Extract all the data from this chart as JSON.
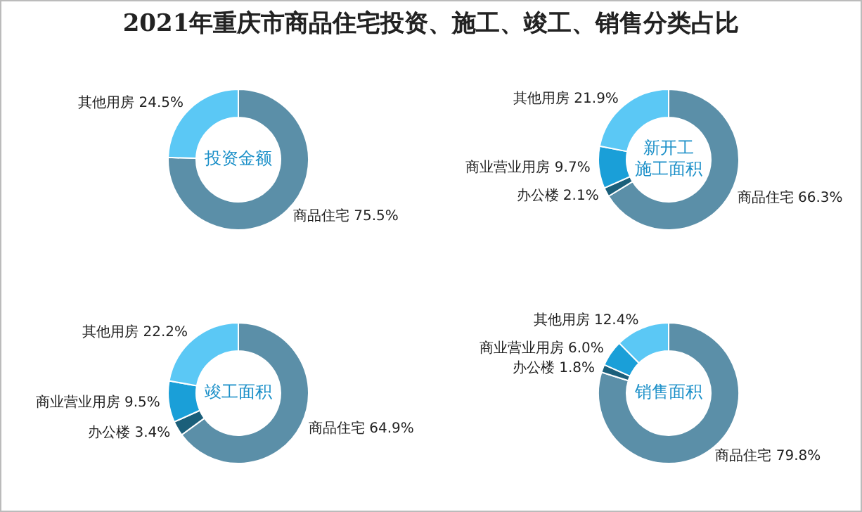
{
  "chart_data": [
    {
      "type": "donut",
      "title": "2021年重庆市商品住宅投资、施工、竣工、销售分类占比",
      "subtitle": "投资金额",
      "categories": [
        "商品住宅",
        "其他用房"
      ],
      "values": [
        75.5,
        24.5
      ],
      "value_labels": [
        "75.5%",
        "24.5%"
      ],
      "colors": [
        "#5b8fa8",
        "#5bc8f5"
      ],
      "legend": false
    },
    {
      "type": "donut",
      "subtitle": "新开工施工面积",
      "categories": [
        "商品住宅",
        "办公楼",
        "商业营业用房",
        "其他用房"
      ],
      "values": [
        66.3,
        2.1,
        9.7,
        21.9
      ],
      "value_labels": [
        "66.3%",
        "2.1%",
        "9.7%",
        "21.9%"
      ],
      "colors": [
        "#5b8fa8",
        "#1b5f7a",
        "#1a9fd8",
        "#5bc8f5"
      ],
      "legend": false
    },
    {
      "type": "donut",
      "subtitle": "竣工面积",
      "categories": [
        "商品住宅",
        "办公楼",
        "商业营业用房",
        "其他用房"
      ],
      "values": [
        64.9,
        3.4,
        9.5,
        22.2
      ],
      "value_labels": [
        "64.9%",
        "3.4%",
        "9.5%",
        "22.2%"
      ],
      "colors": [
        "#5b8fa8",
        "#1b5f7a",
        "#1a9fd8",
        "#5bc8f5"
      ],
      "legend": false
    },
    {
      "type": "donut",
      "subtitle": "销售面积",
      "categories": [
        "商品住宅",
        "办公楼",
        "商业营业用房",
        "其他用房"
      ],
      "values": [
        79.8,
        1.8,
        6.0,
        12.4
      ],
      "value_labels": [
        "79.8%",
        "1.8%",
        "6.0%",
        "12.4%"
      ],
      "colors": [
        "#5b8fa8",
        "#1b5f7a",
        "#1a9fd8",
        "#5bc8f5"
      ],
      "legend": false
    }
  ]
}
